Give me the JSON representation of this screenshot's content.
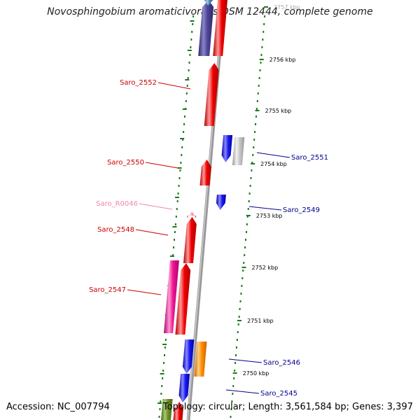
{
  "title": "Novosphingobium aromaticivorans DSM 12444, complete genome",
  "footer": {
    "accession": "Accession: NC_007794",
    "topology": "Topology: circular; Length: 3,561,584 bp; Genes: 3,397"
  },
  "colors": {
    "backbone": "#888888",
    "tick": "#1c7a1c",
    "left_label": "#cc0000",
    "right_label": "#00008b",
    "rna_label": "#ee88aa"
  },
  "kbp_labels": [
    "2757 kbp",
    "2756 kbp",
    "2755 kbp",
    "2754 kbp",
    "2753 kbp",
    "2752 kbp",
    "2751 kbp",
    "2750 kbp"
  ],
  "gene_labels_left": [
    "Saro_2552",
    "Saro_2550",
    "Saro_R0046",
    "Saro_2548",
    "Saro_2547"
  ],
  "gene_labels_right": [
    "Saro_2551",
    "Saro_2549",
    "Saro_2546",
    "Saro_2545"
  ]
}
